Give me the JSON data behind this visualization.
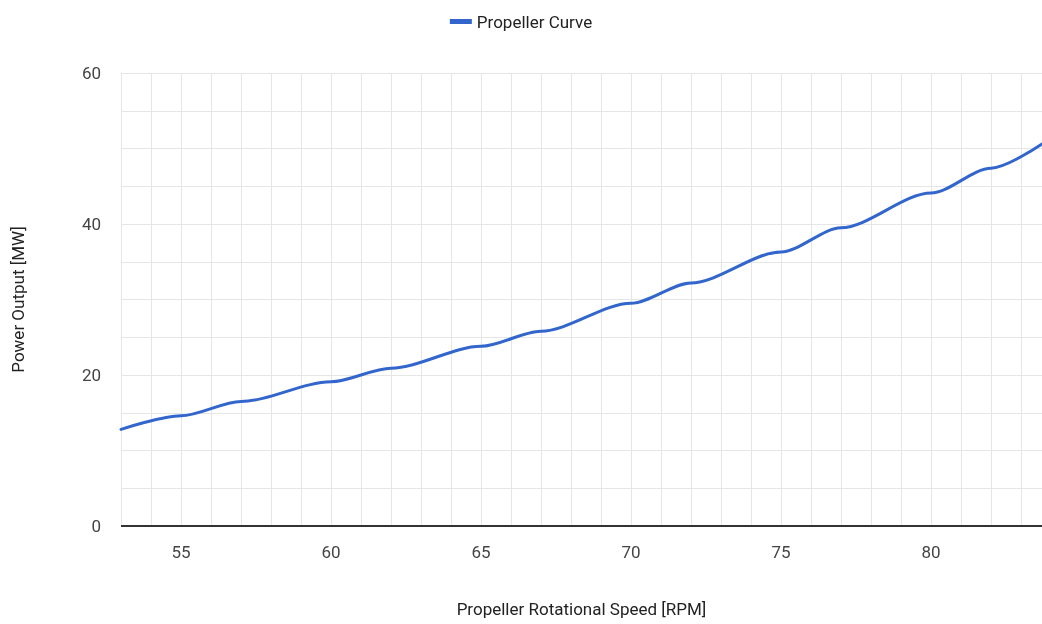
{
  "chart_data": {
    "type": "line",
    "xlabel": "Propeller Rotational Speed [RPM]",
    "ylabel": "Power Output [MW]",
    "x": [
      53,
      55,
      57,
      60,
      62,
      65,
      67,
      70,
      72,
      75,
      77,
      80,
      82,
      83.7
    ],
    "series": [
      {
        "name": "Propeller Curve",
        "color": "#3366cc",
        "values": [
          12.8,
          14.6,
          16.5,
          19.1,
          20.9,
          23.8,
          25.8,
          29.5,
          32.2,
          36.3,
          39.5,
          44.1,
          47.4,
          50.6
        ]
      }
    ],
    "xlim": [
      53,
      83.7
    ],
    "xticks": [
      55,
      60,
      65,
      70,
      75,
      80
    ],
    "ylim": [
      0,
      60
    ],
    "yticks": [
      0,
      20,
      40,
      60
    ],
    "grid": true,
    "legend": "top",
    "marker": "none",
    "line_style": "solid"
  }
}
